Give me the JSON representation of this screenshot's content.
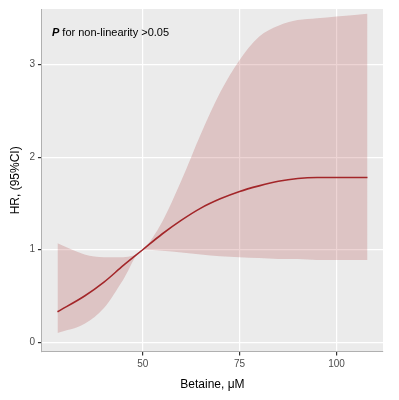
{
  "chart_data": {
    "type": "line",
    "x_label": "Betaine, μM",
    "y_label": "HR, (95%CI)",
    "annotation": "P for non-linearity >0.05",
    "x": [
      28,
      35,
      40,
      45,
      50,
      55,
      60,
      65,
      70,
      75,
      80,
      85,
      90,
      95,
      100,
      108
    ],
    "values": [
      0.33,
      0.5,
      0.65,
      0.83,
      1.0,
      1.17,
      1.32,
      1.45,
      1.55,
      1.63,
      1.69,
      1.74,
      1.77,
      1.78,
      1.78,
      1.78
    ],
    "lower": [
      0.1,
      0.2,
      0.37,
      0.68,
      1.0,
      0.99,
      0.97,
      0.95,
      0.93,
      0.92,
      0.91,
      0.9,
      0.9,
      0.89,
      0.89,
      0.89
    ],
    "upper": [
      1.07,
      0.95,
      0.92,
      0.92,
      1.0,
      1.3,
      1.75,
      2.25,
      2.7,
      3.05,
      3.3,
      3.42,
      3.48,
      3.5,
      3.52,
      3.55
    ],
    "color": "#a3262a",
    "xlim": [
      24,
      112
    ],
    "xticks": [
      50,
      75,
      100
    ],
    "ylim": [
      -0.1,
      3.6
    ],
    "yticks": [
      0,
      1,
      2,
      3
    ],
    "grid": true
  }
}
